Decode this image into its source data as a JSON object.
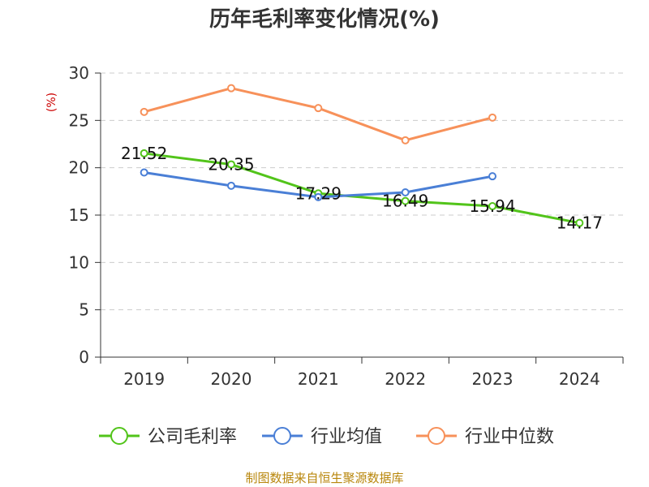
{
  "chart_data": {
    "type": "line",
    "title": "历年毛利率变化情况(%)",
    "ylabel": "(%)",
    "categories": [
      "2019",
      "2020",
      "2021",
      "2022",
      "2023",
      "2024"
    ],
    "ylim": [
      0,
      30
    ],
    "yticks": [
      0,
      5,
      10,
      15,
      20,
      25,
      30
    ],
    "grid": true,
    "legend_position": "bottom",
    "series": [
      {
        "name": "公司毛利率",
        "color": "#52c41a",
        "values": [
          21.52,
          20.35,
          17.29,
          16.49,
          15.94,
          14.17
        ],
        "labels": [
          "21.52",
          "20.35",
          "17.29",
          "16.49",
          "15.94",
          "14.17"
        ]
      },
      {
        "name": "行业均值",
        "color": "#4a7fd6",
        "values": [
          19.5,
          18.1,
          16.9,
          17.4,
          19.1,
          null
        ]
      },
      {
        "name": "行业中位数",
        "color": "#f7915a",
        "values": [
          25.9,
          28.4,
          26.3,
          22.9,
          25.3,
          null
        ]
      }
    ]
  },
  "footer": {
    "source": "制图数据来自恒生聚源数据库"
  }
}
